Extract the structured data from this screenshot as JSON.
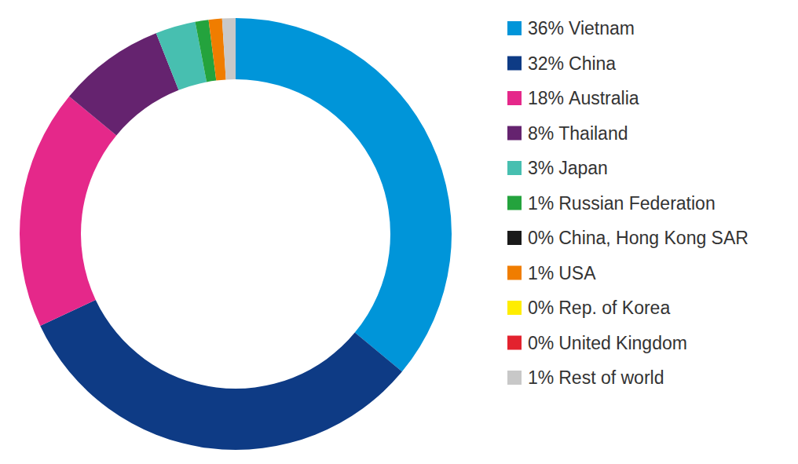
{
  "chart_data": {
    "type": "donut",
    "categories": [
      "Vietnam",
      "China",
      "Australia",
      "Thailand",
      "Japan",
      "Russian Federation",
      "China, Hong Kong SAR",
      "USA",
      "Rep. of Korea",
      "United Kingdom",
      "Rest of world"
    ],
    "values": [
      36,
      32,
      18,
      8,
      3,
      1,
      0,
      1,
      0,
      0,
      1
    ],
    "value_labels": [
      "36%",
      "32%",
      "18%",
      "8%",
      "3%",
      "1%",
      "0%",
      "1%",
      "0%",
      "0%",
      "1%"
    ],
    "colors": [
      "#0095d9",
      "#0e3b85",
      "#e5288a",
      "#65236f",
      "#47bfb0",
      "#24a33d",
      "#1a1a1a",
      "#f07d00",
      "#ffed00",
      "#e3222e",
      "#c8c8c8"
    ],
    "legend": "right"
  }
}
